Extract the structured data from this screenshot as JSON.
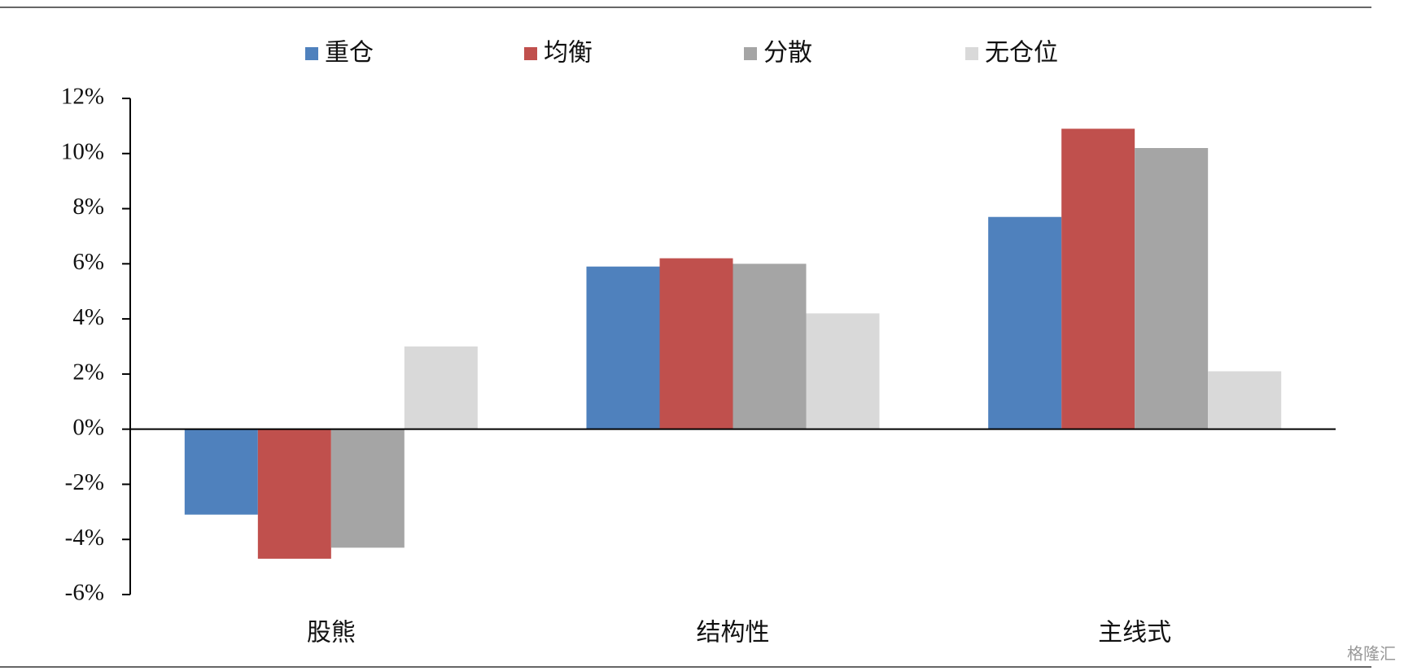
{
  "chart_data": {
    "type": "bar",
    "categories": [
      "股熊",
      "结构性",
      "主线式"
    ],
    "series": [
      {
        "name": "重仓",
        "color": "#4f81bd",
        "values": [
          -3.1,
          5.9,
          7.7
        ]
      },
      {
        "name": "均衡",
        "color": "#c0504d",
        "values": [
          -4.7,
          6.2,
          10.9
        ]
      },
      {
        "name": "分散",
        "color": "#a5a5a5",
        "values": [
          -4.3,
          6.0,
          10.2
        ]
      },
      {
        "name": "无仓位",
        "color": "#d9d9d9",
        "values": [
          3.0,
          4.2,
          2.1
        ]
      }
    ],
    "ylim": [
      -6,
      12
    ],
    "yticks": [
      {
        "value": -6,
        "label": "-6%"
      },
      {
        "value": -4,
        "label": "-4%"
      },
      {
        "value": -2,
        "label": "-2%"
      },
      {
        "value": 0,
        "label": "0%"
      },
      {
        "value": 2,
        "label": "2%"
      },
      {
        "value": 4,
        "label": "4%"
      },
      {
        "value": 6,
        "label": "6%"
      },
      {
        "value": 8,
        "label": "8%"
      },
      {
        "value": 10,
        "label": "10%"
      },
      {
        "value": 12,
        "label": "12%"
      }
    ],
    "legend": "top",
    "watermark": "格隆汇"
  }
}
